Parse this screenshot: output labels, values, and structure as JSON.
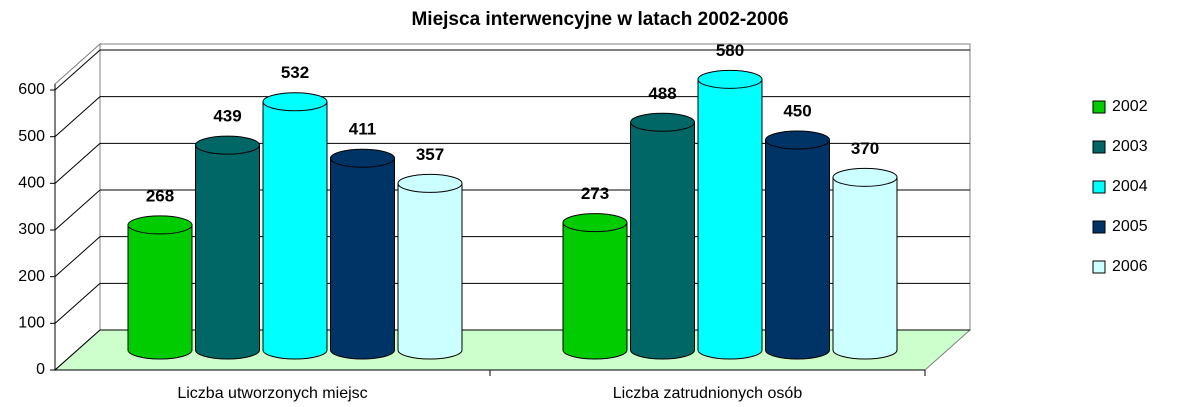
{
  "chart_data": {
    "type": "bar3d",
    "title": "Miejsca interwencyjne w latach 2002-2006",
    "categories": [
      "Liczba utworzonych miejsc",
      "Liczba zatrudnionych osób"
    ],
    "series": [
      {
        "name": "2002",
        "color": "#00cc00",
        "values": [
          268,
          273
        ]
      },
      {
        "name": "2003",
        "color": "#006666",
        "values": [
          439,
          488
        ]
      },
      {
        "name": "2004",
        "color": "#00ffff",
        "values": [
          532,
          580
        ]
      },
      {
        "name": "2005",
        "color": "#003366",
        "values": [
          411,
          450
        ]
      },
      {
        "name": "2006",
        "color": "#ccffff",
        "values": [
          357,
          370
        ]
      }
    ],
    "ylim": [
      0,
      600
    ],
    "yticks": [
      0,
      100,
      200,
      300,
      400,
      500,
      600
    ],
    "grid": true,
    "legend": "right"
  }
}
